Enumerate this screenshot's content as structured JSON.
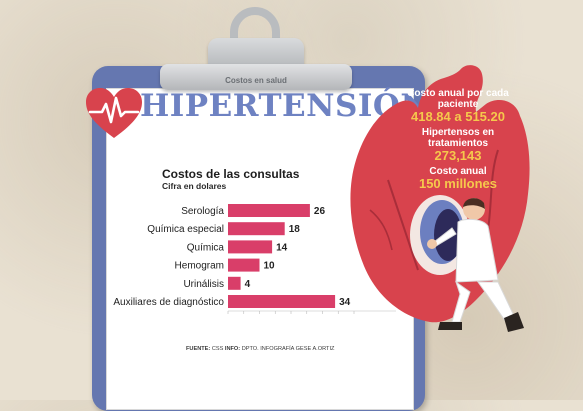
{
  "header": {
    "section_label": "Costos en salud",
    "title": "HIPERTENSIÓN"
  },
  "icons": {
    "heart_pulse": "heart-pulse-icon",
    "doctor_heart": "doctor-heart-illustration"
  },
  "colors": {
    "bar": "#d93e69",
    "title": "#6e82c2",
    "heart": "#d8434d",
    "board": "#6577b0",
    "stat_value": "#f5c84c"
  },
  "stats": [
    {
      "label": "Costo anual por cada paciente",
      "value": "418.84 a 515.20"
    },
    {
      "label": "Hipertensos en tratamientos",
      "value": "273,143"
    },
    {
      "label": "Costo anual",
      "value": "150 millones"
    }
  ],
  "chart_data": {
    "type": "bar",
    "orientation": "horizontal",
    "title": "Costos de las consultas",
    "subtitle": "Cifra en dolares",
    "categories": [
      "Serología",
      "Química especial",
      "Química",
      "Hemogram",
      "Urinálisis",
      "Auxiliares de diagnóstico"
    ],
    "values": [
      26,
      18,
      14,
      10,
      4,
      34
    ],
    "data_labels": [
      "26",
      "18",
      "14",
      "10",
      "4",
      "34"
    ],
    "xlim": [
      0,
      40
    ],
    "grid": false,
    "legend": "none"
  },
  "source": {
    "fuente_label": "FUENTE:",
    "fuente_value": "CSS",
    "info_label": "INFO:",
    "info_value": "DPTO. INFOGRAFÍA GESE A.ORTIZ"
  }
}
